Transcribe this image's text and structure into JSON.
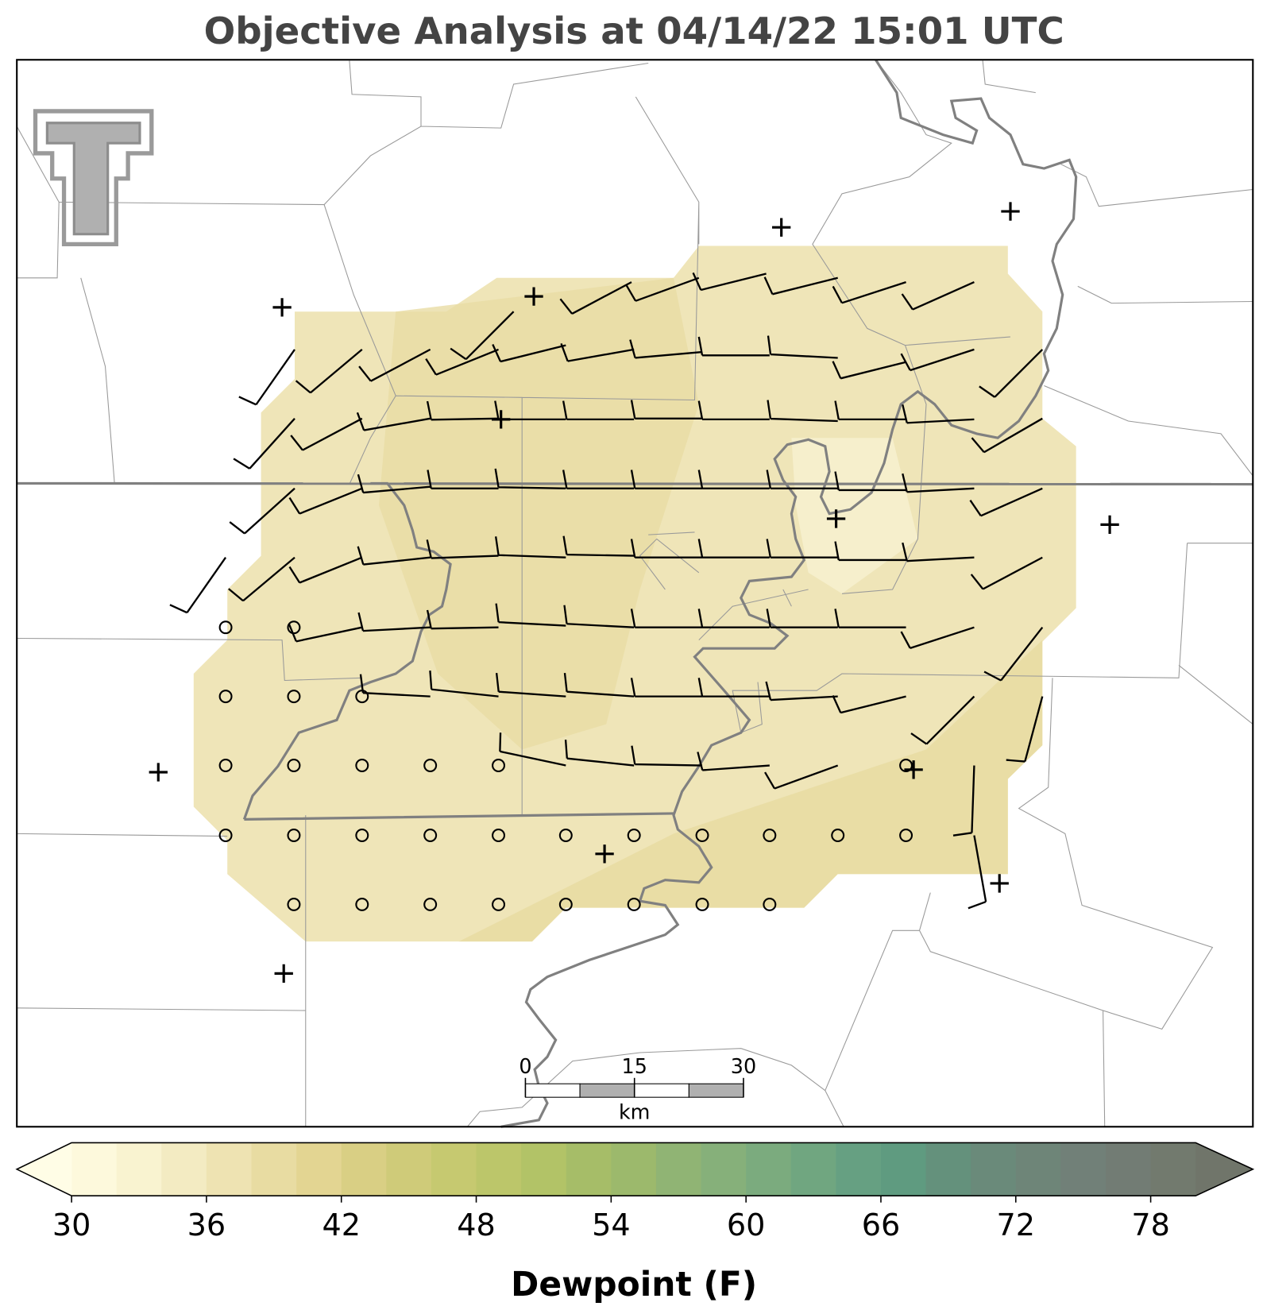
{
  "header": {
    "title": "Objective Analysis at 04/14/22 15:01 UTC"
  },
  "scale_bar": {
    "ticks": [
      0,
      15,
      30
    ],
    "unit": "km"
  },
  "colorbar": {
    "label": "Dewpoint (F)",
    "lim": [
      30,
      80
    ],
    "ticks": [
      30,
      36,
      42,
      48,
      54,
      60,
      66,
      72,
      78
    ],
    "colors": [
      "#fdf9dc",
      "#f9f3d0",
      "#f3ebc2",
      "#eee3b2",
      "#e8dca2",
      "#e3d592",
      "#d9cf84",
      "#cfcb79",
      "#c6c970",
      "#bcc66a",
      "#b2c367",
      "#a6bd68",
      "#9cb96c",
      "#90b474",
      "#86b07a",
      "#7bab7e",
      "#70a680",
      "#66a082",
      "#5f9b80",
      "#64917c",
      "#6a8a7a",
      "#6e8578",
      "#718078",
      "#727c74",
      "#727a6e"
    ],
    "under_color": "#fffde6",
    "over_color": "#70756a"
  }
}
